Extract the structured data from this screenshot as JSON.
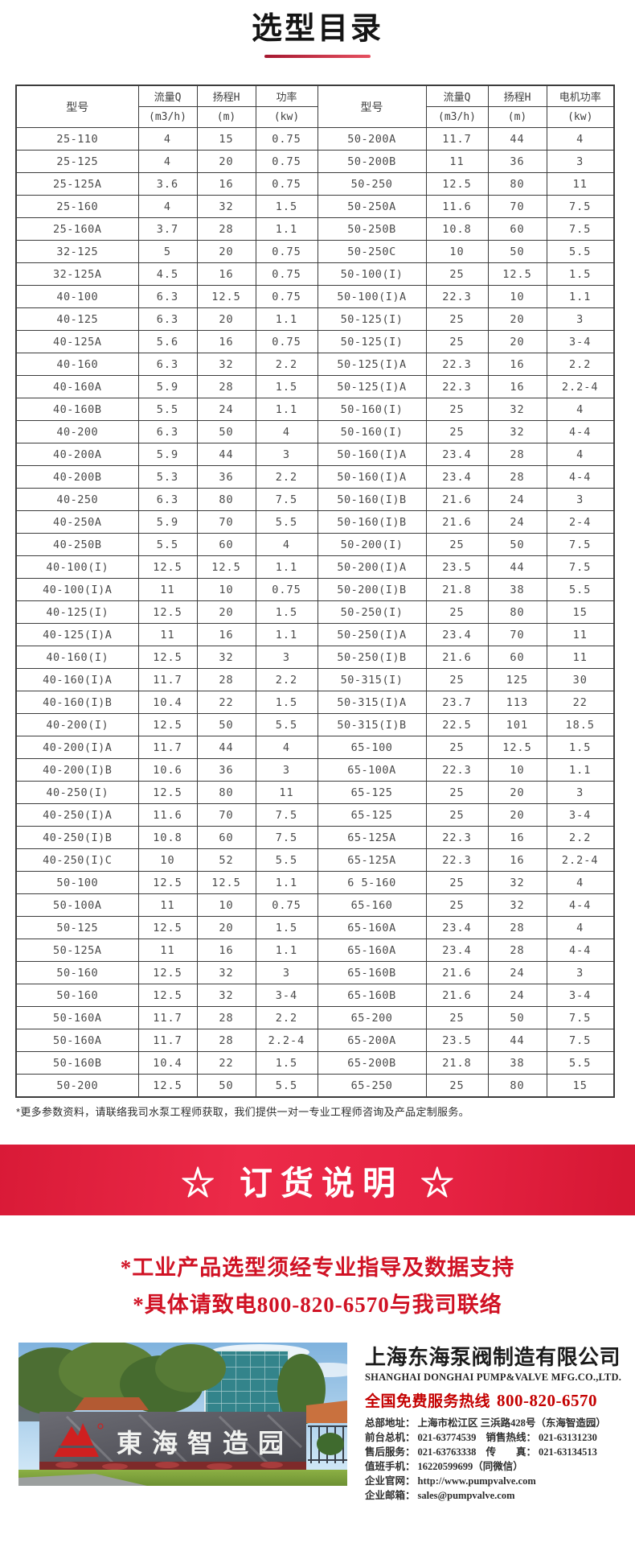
{
  "page": {
    "title": "选型目录"
  },
  "table": {
    "header_groups": [
      {
        "label": "型号",
        "unit": null
      },
      {
        "label": "流量Q",
        "unit": "(m3/h)"
      },
      {
        "label": "扬程H",
        "unit": "(m)"
      },
      {
        "label": "功率",
        "unit": "(kw)"
      },
      {
        "label": "型号",
        "unit": null
      },
      {
        "label": "流量Q",
        "unit": "(m3/h)"
      },
      {
        "label": "扬程H",
        "unit": "(m)"
      },
      {
        "label": "电机功率",
        "unit": "(kw)"
      }
    ],
    "rows": [
      [
        "25-110",
        "4",
        "15",
        "0.75",
        "50-200A",
        "11.7",
        "44",
        "4"
      ],
      [
        "25-125",
        "4",
        "20",
        "0.75",
        "50-200B",
        "11",
        "36",
        "3"
      ],
      [
        "25-125A",
        "3.6",
        "16",
        "0.75",
        "50-250",
        "12.5",
        "80",
        "11"
      ],
      [
        "25-160",
        "4",
        "32",
        "1.5",
        "50-250A",
        "11.6",
        "70",
        "7.5"
      ],
      [
        "25-160A",
        "3.7",
        "28",
        "1.1",
        "50-250B",
        "10.8",
        "60",
        "7.5"
      ],
      [
        "32-125",
        "5",
        "20",
        "0.75",
        "50-250C",
        "10",
        "50",
        "5.5"
      ],
      [
        "32-125A",
        "4.5",
        "16",
        "0.75",
        "50-100(I)",
        "25",
        "12.5",
        "1.5"
      ],
      [
        "40-100",
        "6.3",
        "12.5",
        "0.75",
        "50-100(I)A",
        "22.3",
        "10",
        "1.1"
      ],
      [
        "40-125",
        "6.3",
        "20",
        "1.1",
        "50-125(I)",
        "25",
        "20",
        "3"
      ],
      [
        "40-125A",
        "5.6",
        "16",
        "0.75",
        "50-125(I)",
        "25",
        "20",
        "3-4"
      ],
      [
        "40-160",
        "6.3",
        "32",
        "2.2",
        "50-125(I)A",
        "22.3",
        "16",
        "2.2"
      ],
      [
        "40-160A",
        "5.9",
        "28",
        "1.5",
        "50-125(I)A",
        "22.3",
        "16",
        "2.2-4"
      ],
      [
        "40-160B",
        "5.5",
        "24",
        "1.1",
        "50-160(I)",
        "25",
        "32",
        "4"
      ],
      [
        "40-200",
        "6.3",
        "50",
        "4",
        "50-160(I)",
        "25",
        "32",
        "4-4"
      ],
      [
        "40-200A",
        "5.9",
        "44",
        "3",
        "50-160(I)A",
        "23.4",
        "28",
        "4"
      ],
      [
        "40-200B",
        "5.3",
        "36",
        "2.2",
        "50-160(I)A",
        "23.4",
        "28",
        "4-4"
      ],
      [
        "40-250",
        "6.3",
        "80",
        "7.5",
        "50-160(I)B",
        "21.6",
        "24",
        "3"
      ],
      [
        "40-250A",
        "5.9",
        "70",
        "5.5",
        "50-160(I)B",
        "21.6",
        "24",
        "2-4"
      ],
      [
        "40-250B",
        "5.5",
        "60",
        "4",
        "50-200(I)",
        "25",
        "50",
        "7.5"
      ],
      [
        "40-100(I)",
        "12.5",
        "12.5",
        "1.1",
        "50-200(I)A",
        "23.5",
        "44",
        "7.5"
      ],
      [
        "40-100(I)A",
        "11",
        "10",
        "0.75",
        "50-200(I)B",
        "21.8",
        "38",
        "5.5"
      ],
      [
        "40-125(I)",
        "12.5",
        "20",
        "1.5",
        "50-250(I)",
        "25",
        "80",
        "15"
      ],
      [
        "40-125(I)A",
        "11",
        "16",
        "1.1",
        "50-250(I)A",
        "23.4",
        "70",
        "11"
      ],
      [
        "40-160(I)",
        "12.5",
        "32",
        "3",
        "50-250(I)B",
        "21.6",
        "60",
        "11"
      ],
      [
        "40-160(I)A",
        "11.7",
        "28",
        "2.2",
        "50-315(I)",
        "25",
        "125",
        "30"
      ],
      [
        "40-160(I)B",
        "10.4",
        "22",
        "1.5",
        "50-315(I)A",
        "23.7",
        "113",
        "22"
      ],
      [
        "40-200(I)",
        "12.5",
        "50",
        "5.5",
        "50-315(I)B",
        "22.5",
        "101",
        "18.5"
      ],
      [
        "40-200(I)A",
        "11.7",
        "44",
        "4",
        "65-100",
        "25",
        "12.5",
        "1.5"
      ],
      [
        "40-200(I)B",
        "10.6",
        "36",
        "3",
        "65-100A",
        "22.3",
        "10",
        "1.1"
      ],
      [
        "40-250(I)",
        "12.5",
        "80",
        "11",
        "65-125",
        "25",
        "20",
        "3"
      ],
      [
        "40-250(I)A",
        "11.6",
        "70",
        "7.5",
        "65-125",
        "25",
        "20",
        "3-4"
      ],
      [
        "40-250(I)B",
        "10.8",
        "60",
        "7.5",
        "65-125A",
        "22.3",
        "16",
        "2.2"
      ],
      [
        "40-250(I)C",
        "10",
        "52",
        "5.5",
        "65-125A",
        "22.3",
        "16",
        "2.2-4"
      ],
      [
        "50-100",
        "12.5",
        "12.5",
        "1.1",
        "6 5-160",
        "25",
        "32",
        "4"
      ],
      [
        "50-100A",
        "11",
        "10",
        "0.75",
        "65-160",
        "25",
        "32",
        "4-4"
      ],
      [
        "50-125",
        "12.5",
        "20",
        "1.5",
        "65-160A",
        "23.4",
        "28",
        "4"
      ],
      [
        "50-125A",
        "11",
        "16",
        "1.1",
        "65-160A",
        "23.4",
        "28",
        "4-4"
      ],
      [
        "50-160",
        "12.5",
        "32",
        "3",
        "65-160B",
        "21.6",
        "24",
        "3"
      ],
      [
        "50-160",
        "12.5",
        "32",
        "3-4",
        "65-160B",
        "21.6",
        "24",
        "3-4"
      ],
      [
        "50-160A",
        "11.7",
        "28",
        "2.2",
        "65-200",
        "25",
        "50",
        "7.5"
      ],
      [
        "50-160A",
        "11.7",
        "28",
        "2.2-4",
        "65-200A",
        "23.5",
        "44",
        "7.5"
      ],
      [
        "50-160B",
        "10.4",
        "22",
        "1.5",
        "65-200B",
        "21.8",
        "38",
        "5.5"
      ],
      [
        "50-200",
        "12.5",
        "50",
        "5.5",
        "65-250",
        "25",
        "80",
        "15"
      ]
    ]
  },
  "footnote": "*更多参数资料，请联络我司水泵工程师获取，我们提供一对一专业工程师咨询及产品定制服务。",
  "order_banner": {
    "text": "☆ 订货说明 ☆"
  },
  "order_notes": [
    "*工业产品选型须经专业指导及数据支持",
    "*具体请致电800-820-6570与我司联络"
  ],
  "company": {
    "name": "上海东海泵阀制造有限公司",
    "name_en": "SHANGHAI DONGHAI PUMP&VALVE MFG.CO.,LTD.",
    "hotline_label": "全国免费服务热线",
    "hotline_number": "800-820-6570",
    "info_lines": [
      [
        {
          "label": "总部地址：",
          "value": "上海市松江区 三浜路428号（东海智造园）"
        }
      ],
      [
        {
          "label": "前台总机：",
          "value": "021-63774539"
        },
        {
          "label": "销售热线：",
          "value": "021-63131230"
        }
      ],
      [
        {
          "label": "售后服务：",
          "value": "021-63763338"
        },
        {
          "label": "传　　真：",
          "value": "021-63134513"
        }
      ],
      [
        {
          "label": "值班手机：",
          "value": "16220599699（同微信）"
        }
      ],
      [
        {
          "label": "企业官网：",
          "value": "http://www.pumpvalve.com"
        }
      ],
      [
        {
          "label": "企业邮箱：",
          "value": "sales@pumpvalve.com"
        }
      ]
    ],
    "photo": {
      "sign_text": "東海智造园"
    }
  },
  "colors": {
    "banner_red": "#e62242",
    "note_red": "#d01224",
    "hotline_red": "#c40000",
    "underline_red": "#d43a4c"
  }
}
